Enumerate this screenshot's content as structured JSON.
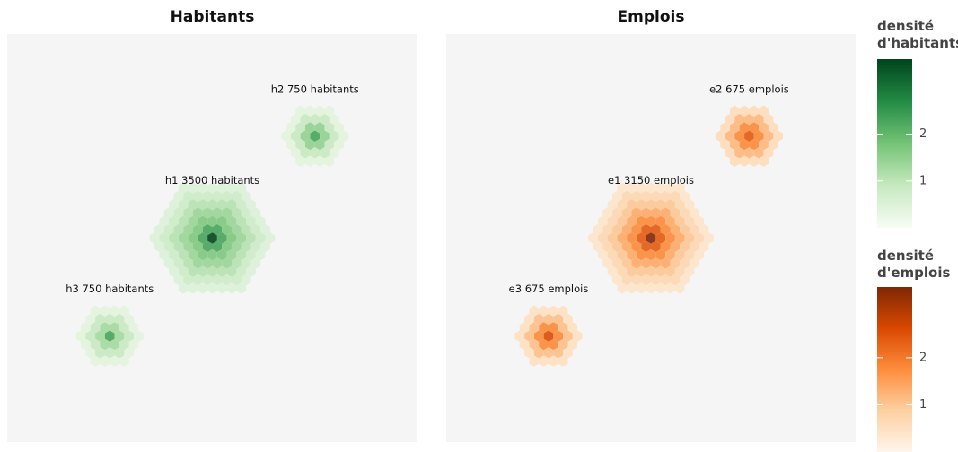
{
  "chart_data": [
    {
      "type": "hexbin",
      "title": "Habitants",
      "xlim": [
        0,
        100
      ],
      "ylim": [
        0,
        100
      ],
      "clusters": [
        {
          "label": "h1 3500 habitants",
          "x": 50,
          "y": 50,
          "rings": [
            3.6,
            2.3,
            1.7,
            1.4,
            1.1,
            0.8,
            0.5
          ]
        },
        {
          "label": "h2 750 habitants",
          "x": 75,
          "y": 75,
          "rings": [
            2.3,
            1.5,
            0.9,
            0.4
          ]
        },
        {
          "label": "h3 750 habitants",
          "x": 25,
          "y": 26,
          "rings": [
            2.3,
            1.3,
            0.9,
            0.4
          ]
        }
      ],
      "colorbar": {
        "title": "densité d'habitants",
        "lim": [
          0,
          3.6
        ],
        "ticks": [
          1,
          2
        ],
        "colors": [
          "#f7fcf5",
          "#c7e9c0",
          "#74c476",
          "#238b45",
          "#00441b"
        ]
      }
    },
    {
      "type": "hexbin",
      "title": "Emplois",
      "xlim": [
        0,
        100
      ],
      "ylim": [
        0,
        100
      ],
      "clusters": [
        {
          "label": "e1 3150 emplois",
          "x": 50,
          "y": 50,
          "rings": [
            3.5,
            2.4,
            1.8,
            1.4,
            1.0,
            0.7,
            0.4
          ]
        },
        {
          "label": "e2 675 emplois",
          "x": 74,
          "y": 75,
          "rings": [
            2.4,
            1.8,
            1.2,
            0.6
          ]
        },
        {
          "label": "e3 675 emplois",
          "x": 25,
          "y": 26,
          "rings": [
            2.6,
            1.8,
            1.1,
            0.5
          ]
        }
      ],
      "colorbar": {
        "title": "densité d'emplois",
        "lim": [
          0,
          3.5
        ],
        "ticks": [
          1,
          2
        ],
        "colors": [
          "#fff5eb",
          "#fdd0a2",
          "#fd8d3c",
          "#d94801",
          "#7f2704"
        ]
      }
    }
  ]
}
